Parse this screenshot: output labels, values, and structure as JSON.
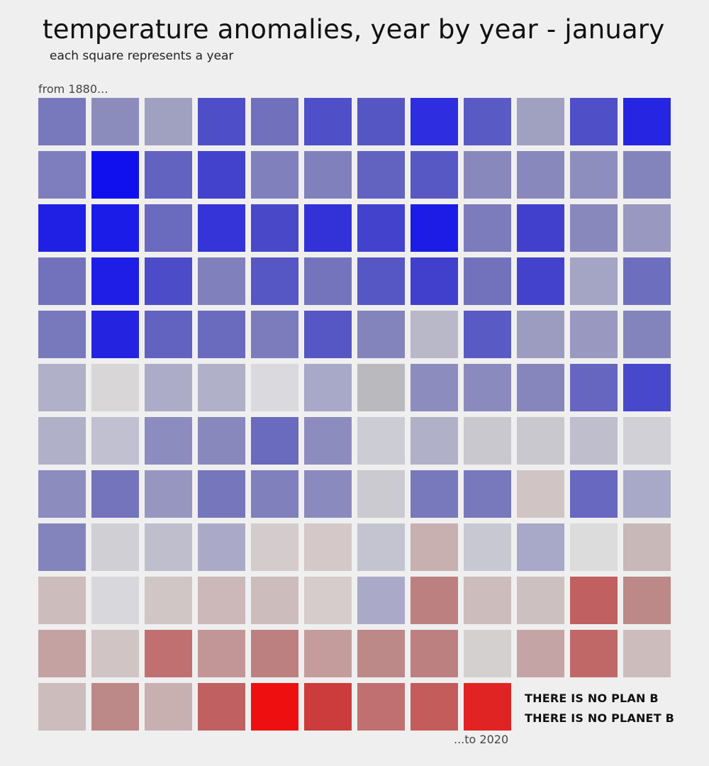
{
  "title": "temperature anomalies, year by year - january",
  "subtitle": "each square represents a year",
  "start_label": "from 1880...",
  "end_label": "...to 2020",
  "slogan": [
    "THERE IS NO PLAN B",
    "THERE IS NO PLANET B"
  ],
  "chart_data": {
    "type": "heatmap",
    "layout": "waffle grid, 12 squares per row, read left-to-right, top-to-bottom",
    "columns": 12,
    "first_year": 1880,
    "last_year": 2020,
    "colors": {
      "cold": "#1010ee",
      "neutral": "#dcdcdc",
      "warm": "#ee1010"
    },
    "cells": [
      "#7878bc",
      "#8c8cbc",
      "#a0a0c0",
      "#4e4ec8",
      "#7070bc",
      "#4f4fc8",
      "#5555c4",
      "#2e2ee0",
      "#5a5ac4",
      "#a0a0c0",
      "#4f4fc8",
      "#2626e2",
      "#7e7ebe",
      "#1010ee",
      "#6262c0",
      "#4242cc",
      "#8080bc",
      "#8080bc",
      "#6262c0",
      "#5858c4",
      "#8888bc",
      "#8888bc",
      "#8e8ebe",
      "#8484bc",
      "#2020e4",
      "#1c1ce8",
      "#6a6abe",
      "#3434d8",
      "#4848c8",
      "#3232d8",
      "#4242cc",
      "#1c1ce6",
      "#7c7cbc",
      "#4040cc",
      "#8888bc",
      "#9898c0",
      "#7272bc",
      "#1e1ee6",
      "#4c4cc8",
      "#8080bc",
      "#5656c4",
      "#7474bc",
      "#5656c4",
      "#4040cc",
      "#7272bc",
      "#4242cc",
      "#a4a4c4",
      "#6e6ebe",
      "#7878bc",
      "#2424e0",
      "#6262c0",
      "#6a6abe",
      "#7c7cbc",
      "#5656c4",
      "#8484bc",
      "#b8b8c8",
      "#5a5ac4",
      "#9c9cc0",
      "#9898c0",
      "#8484bc",
      "#b0b0c8",
      "#d8d6d6",
      "#acacc8",
      "#b0b0c8",
      "#dadade",
      "#a8a8c8",
      "#bababe",
      "#8c8cbe",
      "#8a8abe",
      "#8686bc",
      "#6666c0",
      "#4848cc",
      "#b0b0c8",
      "#c0c0d0",
      "#8c8cbe",
      "#8888bc",
      "#6a6abe",
      "#8c8cbe",
      "#ccccd4",
      "#b0b0c8",
      "#c8c8ce",
      "#c8c8ce",
      "#bebecc",
      "#d0d0d6",
      "#8c8cbe",
      "#7474bc",
      "#9696c0",
      "#7676bc",
      "#8080bc",
      "#8a8abe",
      "#cacad0",
      "#7878bc",
      "#7878bc",
      "#d0c4c4",
      "#6868c0",
      "#a8a8c8",
      "#8484bc",
      "#d0d0d4",
      "#bebecc",
      "#aaaac8",
      "#d4cccc",
      "#d4c8c8",
      "#c4c4d0",
      "#c8b0b0",
      "#c8c8d2",
      "#a8a8c8",
      "#dcdcdc",
      "#c8b8b8",
      "#ccbcbc",
      "#d8d8dc",
      "#d0c6c6",
      "#ccb8b8",
      "#ccbcbc",
      "#d6cccc",
      "#aaaac8",
      "#bc8080",
      "#ccbcbc",
      "#ccc0c0",
      "#c06060",
      "#bc8888",
      "#c4a2a2",
      "#d0c4c4",
      "#c07070",
      "#c29696",
      "#bc8080",
      "#c49c9c",
      "#bc8888",
      "#bc8080",
      "#d4d0d0",
      "#c4a4a4",
      "#c06868",
      "#ccbcbc",
      "#ccbcbc",
      "#bc8888",
      "#c8b0b0",
      "#c06060",
      "#ee1010",
      "#cc3c3c",
      "#c07070",
      "#c45c5c",
      "#e02424"
    ]
  }
}
